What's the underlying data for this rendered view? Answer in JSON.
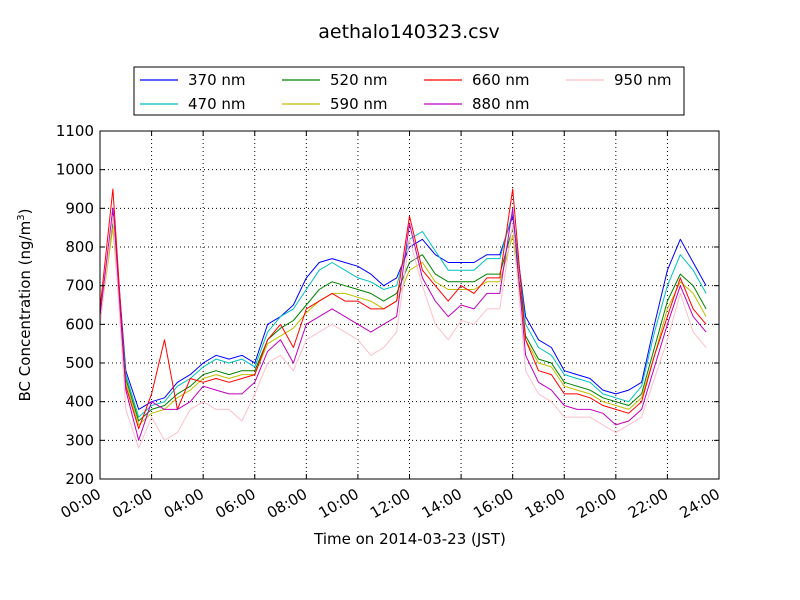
{
  "chart_data": {
    "type": "line",
    "title": "aethalo140323.csv",
    "xlabel": "Time on 2014-03-23 (JST)",
    "ylabel": "BC Concentration (ng/m³)",
    "ylabel_parts": {
      "main": "BC Concentration (ng/m",
      "sup": "3",
      "close": ")"
    },
    "xlim": [
      0,
      24
    ],
    "ylim": [
      200,
      1100
    ],
    "grid": true,
    "legend_position": "top",
    "xticks": [
      "00:00",
      "02:00",
      "04:00",
      "06:00",
      "08:00",
      "10:00",
      "12:00",
      "14:00",
      "16:00",
      "18:00",
      "20:00",
      "22:00",
      "24:00"
    ],
    "yticks": [
      "200",
      "300",
      "400",
      "500",
      "600",
      "700",
      "800",
      "900",
      "1000",
      "1100"
    ],
    "x": [
      0,
      0.5,
      1,
      1.5,
      2,
      2.5,
      3,
      3.5,
      4,
      4.5,
      5,
      5.5,
      6,
      6.5,
      7,
      7.5,
      8,
      8.5,
      9,
      9.5,
      10,
      10.5,
      11,
      11.5,
      12,
      12.5,
      13,
      13.5,
      14,
      14.5,
      15,
      15.5,
      16,
      16.5,
      17,
      17.5,
      18,
      18.5,
      19,
      19.5,
      20,
      20.5,
      21,
      21.5,
      22,
      22.5,
      23,
      23.5
    ],
    "series": [
      {
        "name": "370 nm",
        "color": "#0000ff",
        "values": [
          600,
          900,
          480,
          380,
          400,
          410,
          450,
          470,
          500,
          520,
          510,
          520,
          500,
          600,
          620,
          650,
          720,
          760,
          770,
          760,
          750,
          730,
          700,
          720,
          800,
          820,
          780,
          760,
          760,
          760,
          780,
          780,
          880,
          620,
          560,
          540,
          480,
          470,
          460,
          430,
          420,
          430,
          450,
          600,
          740,
          820,
          760,
          700
        ]
      },
      {
        "name": "470 nm",
        "color": "#00bfbf",
        "values": [
          630,
          880,
          470,
          360,
          390,
          400,
          440,
          460,
          490,
          510,
          500,
          510,
          490,
          580,
          620,
          640,
          690,
          740,
          760,
          740,
          720,
          710,
          690,
          700,
          820,
          840,
          790,
          740,
          740,
          740,
          770,
          770,
          890,
          600,
          540,
          520,
          470,
          460,
          450,
          420,
          410,
          400,
          440,
          580,
          700,
          780,
          740,
          680
        ]
      },
      {
        "name": "520 nm",
        "color": "#008000",
        "values": [
          620,
          860,
          460,
          350,
          380,
          390,
          420,
          440,
          470,
          480,
          470,
          480,
          480,
          560,
          590,
          610,
          650,
          690,
          710,
          700,
          690,
          680,
          660,
          680,
          760,
          780,
          730,
          710,
          710,
          710,
          730,
          730,
          850,
          570,
          510,
          500,
          450,
          440,
          430,
          410,
          400,
          390,
          420,
          540,
          660,
          730,
          700,
          640
        ]
      },
      {
        "name": "590 nm",
        "color": "#bfbf00",
        "values": [
          610,
          850,
          450,
          340,
          370,
          380,
          410,
          430,
          460,
          470,
          460,
          470,
          470,
          550,
          570,
          590,
          630,
          660,
          680,
          680,
          670,
          660,
          640,
          660,
          740,
          760,
          710,
          690,
          690,
          690,
          710,
          710,
          830,
          560,
          500,
          490,
          440,
          430,
          420,
          400,
          390,
          380,
          410,
          520,
          640,
          710,
          680,
          620
        ]
      },
      {
        "name": "660 nm",
        "color": "#ff0000",
        "values": [
          640,
          950,
          440,
          330,
          420,
          560,
          380,
          460,
          450,
          460,
          450,
          460,
          470,
          560,
          600,
          540,
          640,
          660,
          680,
          660,
          660,
          640,
          640,
          660,
          880,
          740,
          700,
          660,
          700,
          680,
          720,
          720,
          950,
          560,
          480,
          470,
          420,
          420,
          410,
          390,
          380,
          370,
          400,
          520,
          620,
          720,
          640,
          600
        ]
      },
      {
        "name": "880 nm",
        "color": "#bf00bf",
        "values": [
          620,
          900,
          430,
          300,
          400,
          380,
          380,
          400,
          440,
          430,
          420,
          420,
          450,
          530,
          560,
          500,
          600,
          620,
          640,
          620,
          600,
          580,
          600,
          620,
          860,
          720,
          660,
          620,
          650,
          640,
          680,
          680,
          900,
          520,
          450,
          430,
          390,
          380,
          380,
          370,
          340,
          350,
          380,
          490,
          600,
          700,
          620,
          580
        ]
      },
      {
        "name": "950 nm",
        "color": "#ffc0cb",
        "values": [
          600,
          880,
          380,
          280,
          360,
          300,
          320,
          380,
          400,
          380,
          380,
          350,
          420,
          500,
          520,
          480,
          560,
          580,
          600,
          580,
          560,
          520,
          540,
          580,
          820,
          700,
          600,
          560,
          610,
          600,
          640,
          640,
          860,
          480,
          420,
          400,
          360,
          360,
          360,
          340,
          320,
          340,
          360,
          460,
          560,
          680,
          580,
          540
        ]
      }
    ]
  }
}
